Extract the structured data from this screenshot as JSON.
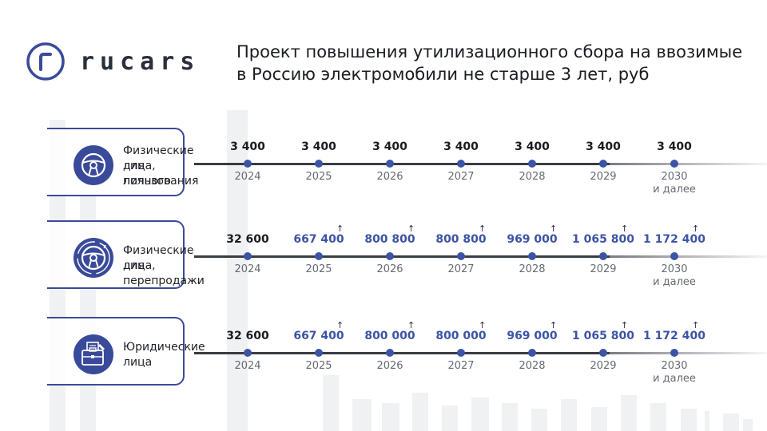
{
  "logo": {
    "text": "rucars",
    "color": "#3a4a9a"
  },
  "title": {
    "line1": "Проект повышения утилизационного сбора на ввозимые",
    "line2": "в Россию электромобили не старше 3 лет, руб"
  },
  "colors": {
    "accent": "#3c54a5",
    "card_border": "#3a4a9a",
    "text": "#1a1c22",
    "year": "#666a72"
  },
  "years": [
    "2024",
    "2025",
    "2026",
    "2027",
    "2028",
    "2029",
    "2030"
  ],
  "year_note": "и далее",
  "rows": [
    {
      "icon": "steering-wheel-icon",
      "label_lines": [
        "Физические лица,",
        "для личного",
        "пользования"
      ],
      "values": [
        "3 400",
        "3 400",
        "3 400",
        "3 400",
        "3 400",
        "3 400",
        "3 400"
      ],
      "increase": [
        false,
        false,
        false,
        false,
        false,
        false,
        false
      ]
    },
    {
      "icon": "steering-wheel-cycle-icon",
      "label_lines": [
        "Физические лица,",
        "для перепродажи"
      ],
      "values": [
        "32 600",
        "667 400",
        "800 800",
        "800 800",
        "969 000",
        "1 065 800",
        "1 172 400"
      ],
      "increase": [
        false,
        true,
        true,
        true,
        true,
        true,
        true
      ]
    },
    {
      "icon": "briefcase-documents-icon",
      "label_lines": [
        "Юридические",
        "лица"
      ],
      "values": [
        "32 600",
        "667 400",
        "800 000",
        "800 000",
        "969 000",
        "1 065 800",
        "1 172 400"
      ],
      "increase": [
        false,
        true,
        true,
        true,
        true,
        true,
        true
      ]
    }
  ]
}
